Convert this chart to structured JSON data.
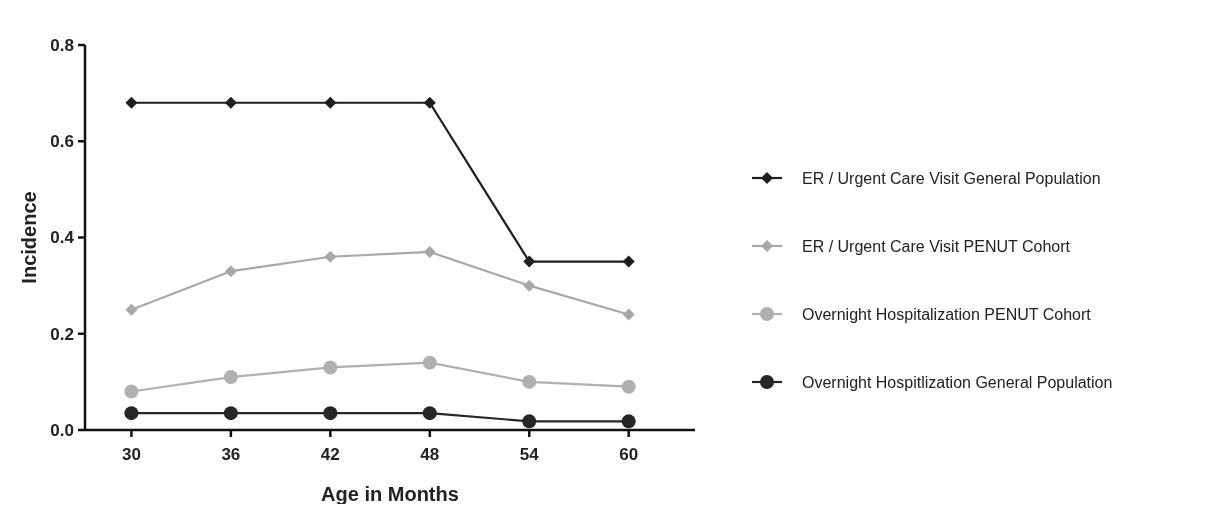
{
  "chart_data": {
    "type": "line",
    "xlabel": "Age in Months",
    "ylabel": "Incidence",
    "x": [
      30,
      36,
      42,
      48,
      54,
      60
    ],
    "xlim": [
      27.2,
      64
    ],
    "xticks": [
      30,
      36,
      42,
      48,
      54,
      60
    ],
    "ylim": [
      0,
      0.8
    ],
    "yticks": [
      {
        "value": 0,
        "label": "0.0"
      },
      0.2,
      0.4,
      0.6,
      0.8
    ],
    "legend": "right",
    "grid": false,
    "series": [
      {
        "name": "ER / Urgent Care Visit General Population",
        "color": "#1e1e1e",
        "marker": "diamond",
        "values": [
          0.68,
          0.68,
          0.68,
          0.68,
          0.35,
          0.35
        ]
      },
      {
        "name": "ER / Urgent Care Visit PENUT Cohort",
        "color": "#a8a8a8",
        "marker": "diamond",
        "values": [
          0.25,
          0.33,
          0.36,
          0.37,
          0.3,
          0.24
        ]
      },
      {
        "name": "Overnight Hospitalization PENUT Cohort",
        "color": "#b0b0b0",
        "marker": "circle",
        "values": [
          0.08,
          0.11,
          0.13,
          0.14,
          0.1,
          0.09
        ]
      },
      {
        "name": "Overnight Hospitlization General Population",
        "color": "#262626",
        "marker": "circle",
        "values": [
          0.035,
          0.035,
          0.035,
          0.035,
          0.018,
          0.018
        ]
      }
    ]
  }
}
